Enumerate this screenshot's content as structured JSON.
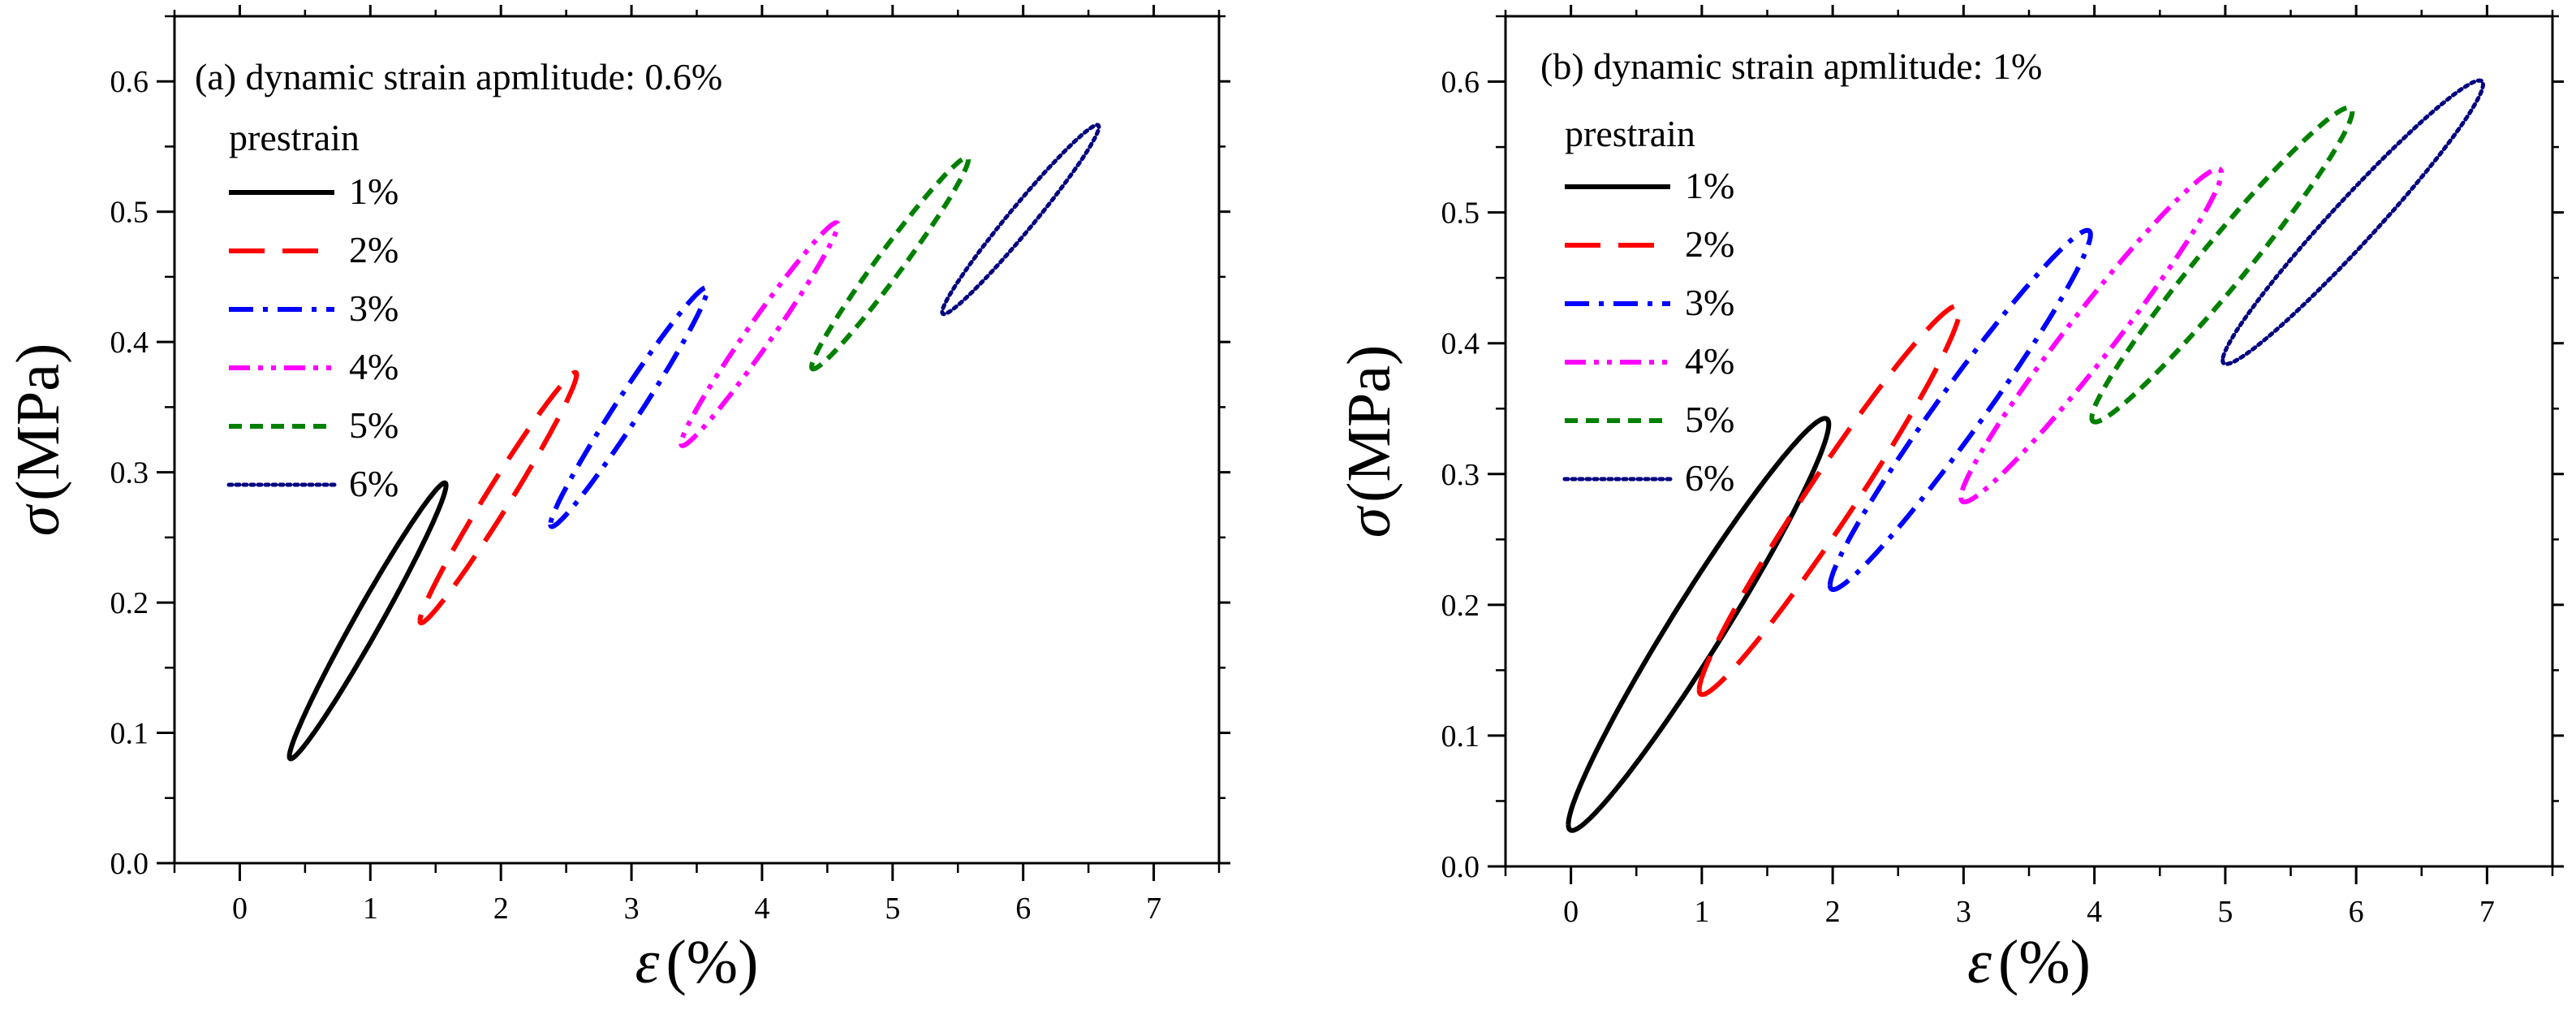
{
  "colors": {
    "1%": "#000000",
    "2%": "#ff0000",
    "3%": "#0000ff",
    "4%": "#ff00ff",
    "5%": "#008000",
    "6%": "#000080"
  },
  "chart_data": [
    {
      "type": "line",
      "title": "(a)  dynamic strain apmlitude: 0.6%",
      "xlabel_symbol": "ε",
      "xlabel_unit": "(%)",
      "ylabel_symbol": "σ",
      "ylabel_unit": "(MPa)",
      "xlim": [
        -0.5,
        7.5
      ],
      "ylim": [
        0.0,
        0.65
      ],
      "xticks": [
        0,
        1,
        2,
        3,
        4,
        5,
        6,
        7
      ],
      "yticks": [
        0.0,
        0.1,
        0.2,
        0.3,
        0.4,
        0.5,
        0.6
      ],
      "legend_title": "prestrain",
      "series": [
        {
          "name": "1%",
          "dash": "solid",
          "start": [
            0.38,
            0.082
          ],
          "end": [
            1.58,
            0.29
          ],
          "width": 0.04
        },
        {
          "name": "2%",
          "dash": "dash",
          "start": [
            1.38,
            0.186
          ],
          "end": [
            2.58,
            0.375
          ],
          "width": 0.035
        },
        {
          "name": "3%",
          "dash": "dashdot",
          "start": [
            2.38,
            0.26
          ],
          "end": [
            3.58,
            0.44
          ],
          "width": 0.035
        },
        {
          "name": "4%",
          "dash": "dashdotdot",
          "start": [
            3.38,
            0.322
          ],
          "end": [
            4.58,
            0.49
          ],
          "width": 0.033
        },
        {
          "name": "5%",
          "dash": "shortdash",
          "start": [
            4.38,
            0.381
          ],
          "end": [
            5.58,
            0.54
          ],
          "width": 0.033
        },
        {
          "name": "6%",
          "dash": "dot",
          "start": [
            5.38,
            0.423
          ],
          "end": [
            6.58,
            0.565
          ],
          "width": 0.03
        }
      ]
    },
    {
      "type": "line",
      "title": "(b)  dynamic strain apmlitude: 1%",
      "xlabel_symbol": "ε",
      "xlabel_unit": "(%)",
      "ylabel_symbol": "σ",
      "ylabel_unit": "(MPa)",
      "xlim": [
        -0.5,
        7.5
      ],
      "ylim": [
        0.0,
        0.65
      ],
      "xticks": [
        0,
        1,
        2,
        3,
        4,
        5,
        6,
        7
      ],
      "yticks": [
        0.0,
        0.1,
        0.2,
        0.3,
        0.4,
        0.5,
        0.6
      ],
      "legend_title": "prestrain",
      "series": [
        {
          "name": "1%",
          "dash": "solid",
          "start": [
            -0.02,
            0.032
          ],
          "end": [
            1.97,
            0.338
          ],
          "width": 0.075
        },
        {
          "name": "2%",
          "dash": "dash",
          "start": [
            0.98,
            0.135
          ],
          "end": [
            2.97,
            0.425
          ],
          "width": 0.065
        },
        {
          "name": "3%",
          "dash": "dashdot",
          "start": [
            1.98,
            0.215
          ],
          "end": [
            3.97,
            0.483
          ],
          "width": 0.06
        },
        {
          "name": "4%",
          "dash": "dashdotdot",
          "start": [
            2.98,
            0.282
          ],
          "end": [
            4.97,
            0.53
          ],
          "width": 0.058
        },
        {
          "name": "5%",
          "dash": "shortdash",
          "start": [
            3.98,
            0.343
          ],
          "end": [
            5.97,
            0.577
          ],
          "width": 0.055
        },
        {
          "name": "6%",
          "dash": "dot",
          "start": [
            4.98,
            0.387
          ],
          "end": [
            6.97,
            0.598
          ],
          "width": 0.05
        }
      ]
    }
  ]
}
